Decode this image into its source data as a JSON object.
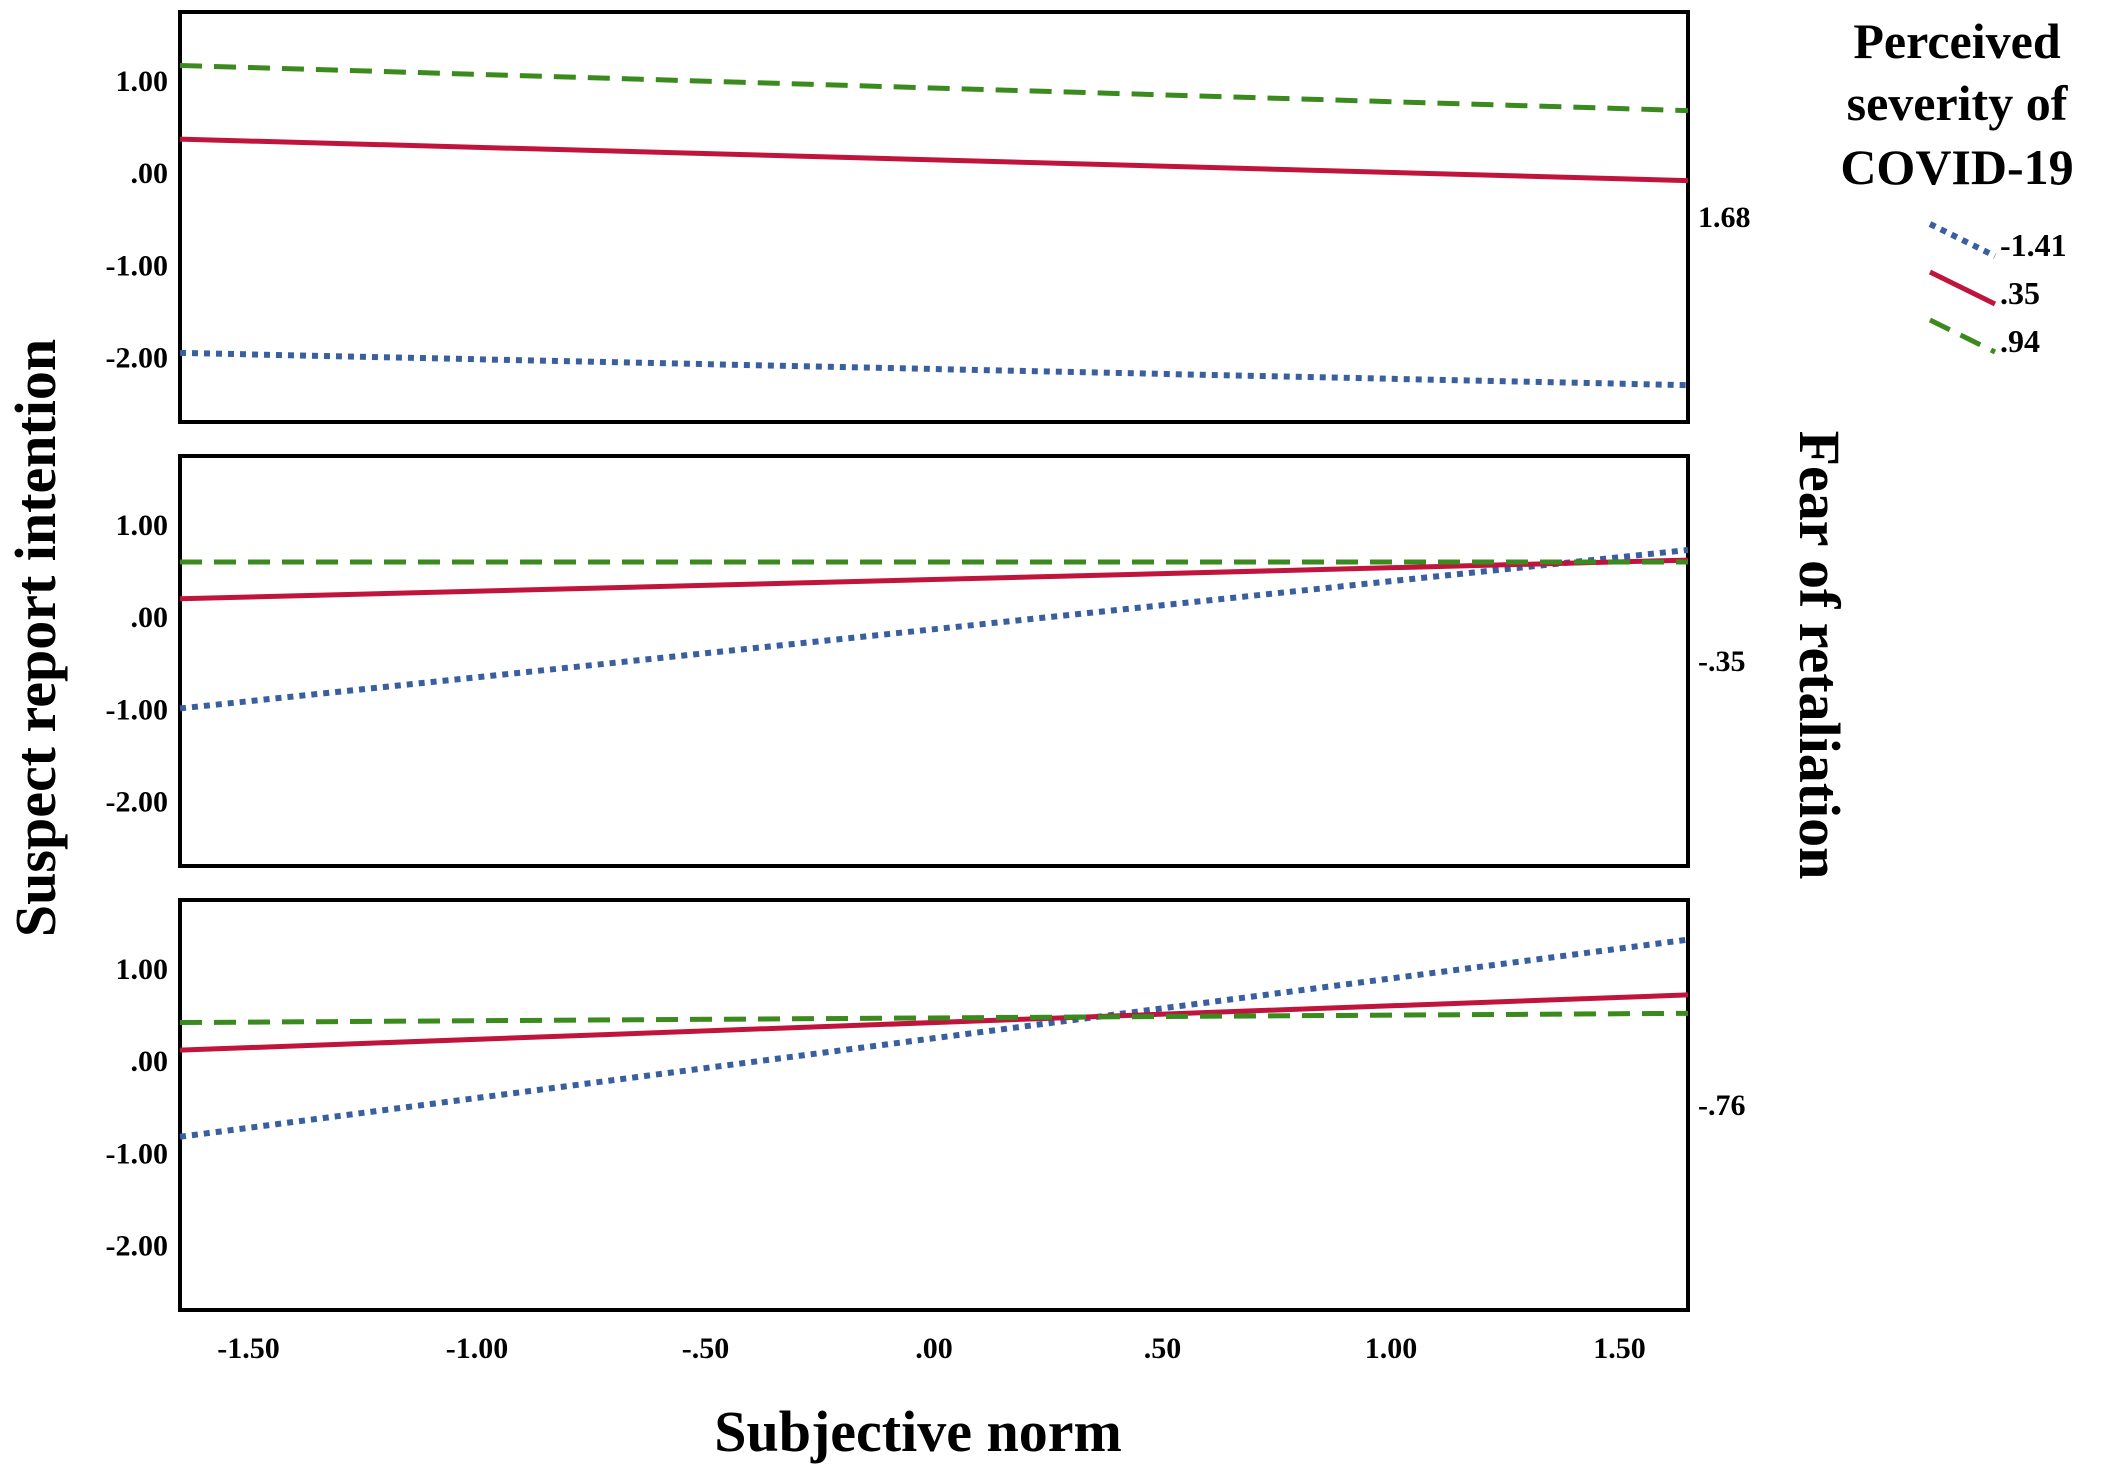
{
  "chart_data": {
    "type": "line",
    "x_axis_label": "Subjective norm",
    "y_axis_label": "Suspect report intention",
    "moderator_axis_label": "Fear of retaliation",
    "xlim": [
      -1.65,
      1.65
    ],
    "ylim": [
      -2.7,
      1.75
    ],
    "x_ticks": [
      -1.5,
      -1.0,
      -0.5,
      0.0,
      0.5,
      1.0,
      1.5
    ],
    "x_tick_labels": [
      "-1.50",
      "-1.00",
      "-.50",
      ".00",
      ".50",
      "1.00",
      "1.50"
    ],
    "y_ticks": [
      1.0,
      0.0,
      -1.0,
      -2.0
    ],
    "y_tick_labels": [
      "1.00",
      ".00",
      "-1.00",
      "-2.00"
    ],
    "legend": {
      "title_lines": [
        "Perceived",
        "severity of",
        "COVID-19"
      ],
      "placement": "top-right"
    },
    "series_styles": [
      {
        "name": "-1.41",
        "color": "#3a5fa0",
        "style": "dotted"
      },
      {
        "name": ".35",
        "color": "#c0143c",
        "style": "solid"
      },
      {
        "name": ".94",
        "color": "#3a8a1e",
        "style": "dashed"
      }
    ],
    "panels": [
      {
        "label": "1.68",
        "x": [
          -1.65,
          1.65
        ],
        "series": [
          {
            "name": "-1.41",
            "values": [
              -1.95,
              -2.3
            ]
          },
          {
            "name": ".35",
            "values": [
              0.37,
              -0.08
            ]
          },
          {
            "name": ".94",
            "values": [
              1.17,
              0.68
            ]
          }
        ]
      },
      {
        "label": "-.35",
        "x": [
          -1.65,
          1.65
        ],
        "series": [
          {
            "name": "-1.41",
            "values": [
              -0.99,
              0.73
            ]
          },
          {
            "name": ".35",
            "values": [
              0.2,
              0.62
            ]
          },
          {
            "name": ".94",
            "values": [
              0.6,
              0.6
            ]
          }
        ]
      },
      {
        "label": "-.76",
        "x": [
          -1.65,
          1.65
        ],
        "series": [
          {
            "name": "-1.41",
            "values": [
              -0.82,
              1.32
            ]
          },
          {
            "name": ".35",
            "values": [
              0.12,
              0.72
            ]
          },
          {
            "name": ".94",
            "values": [
              0.42,
              0.52
            ]
          }
        ]
      }
    ]
  }
}
